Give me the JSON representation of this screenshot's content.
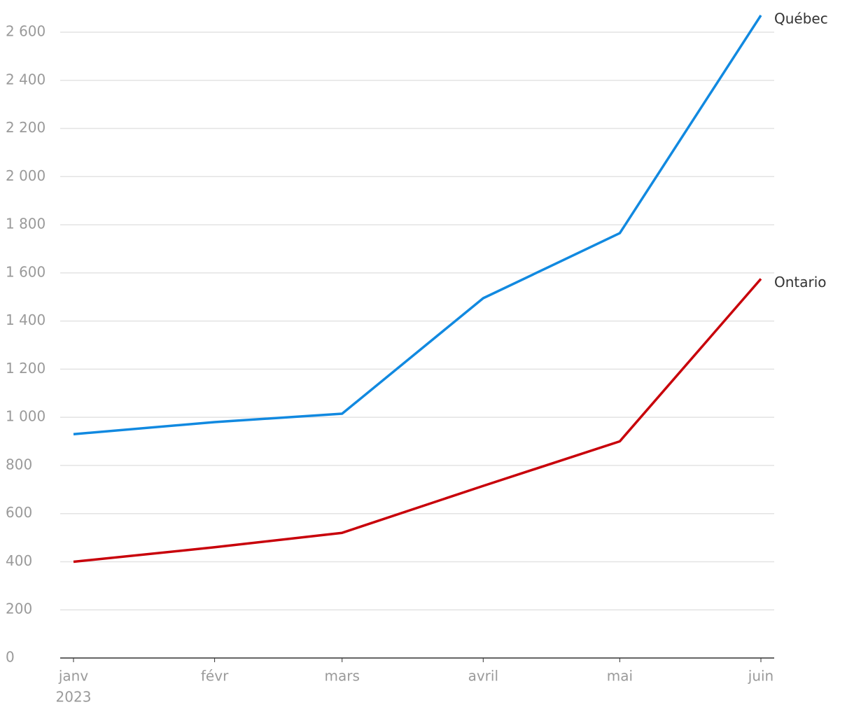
{
  "chart_data": {
    "type": "line",
    "x": [
      "2023-01",
      "2023-02",
      "2023-03",
      "2023-04",
      "2023-05",
      "2023-06"
    ],
    "xlim": [
      "2023-01",
      "2023-06"
    ],
    "xticks": [
      {
        "value": "2023-01",
        "label": "janv"
      },
      {
        "value": "2023-02",
        "label": "févr"
      },
      {
        "value": "2023-03",
        "label": "mars"
      },
      {
        "value": "2023-04",
        "label": "avril"
      },
      {
        "value": "2023-05",
        "label": "mai"
      },
      {
        "value": "2023-06",
        "label": "juin"
      }
    ],
    "x_year_label": "2023",
    "series": [
      {
        "name": "Québec",
        "color": "#1189e0",
        "values": [
          930,
          980,
          1015,
          1495,
          1765,
          2670
        ]
      },
      {
        "name": "Ontario",
        "color": "#c8000a",
        "values": [
          400,
          460,
          520,
          715,
          900,
          1575
        ]
      }
    ],
    "ylim": [
      0,
      2600
    ],
    "yticks": [
      0,
      200,
      400,
      600,
      800,
      {
        "value": 1000,
        "label": "1 000"
      },
      {
        "value": 1200,
        "label": "1 200"
      },
      {
        "value": 1400,
        "label": "1 400"
      },
      {
        "value": 1600,
        "label": "1 600"
      },
      {
        "value": 1800,
        "label": "1 800"
      },
      {
        "value": 2000,
        "label": "2 000"
      },
      {
        "value": 2200,
        "label": "2 200"
      },
      {
        "value": 2400,
        "label": "2 400"
      },
      {
        "value": 2600,
        "label": "2 600"
      }
    ],
    "grid": true,
    "legend": "line-end"
  }
}
